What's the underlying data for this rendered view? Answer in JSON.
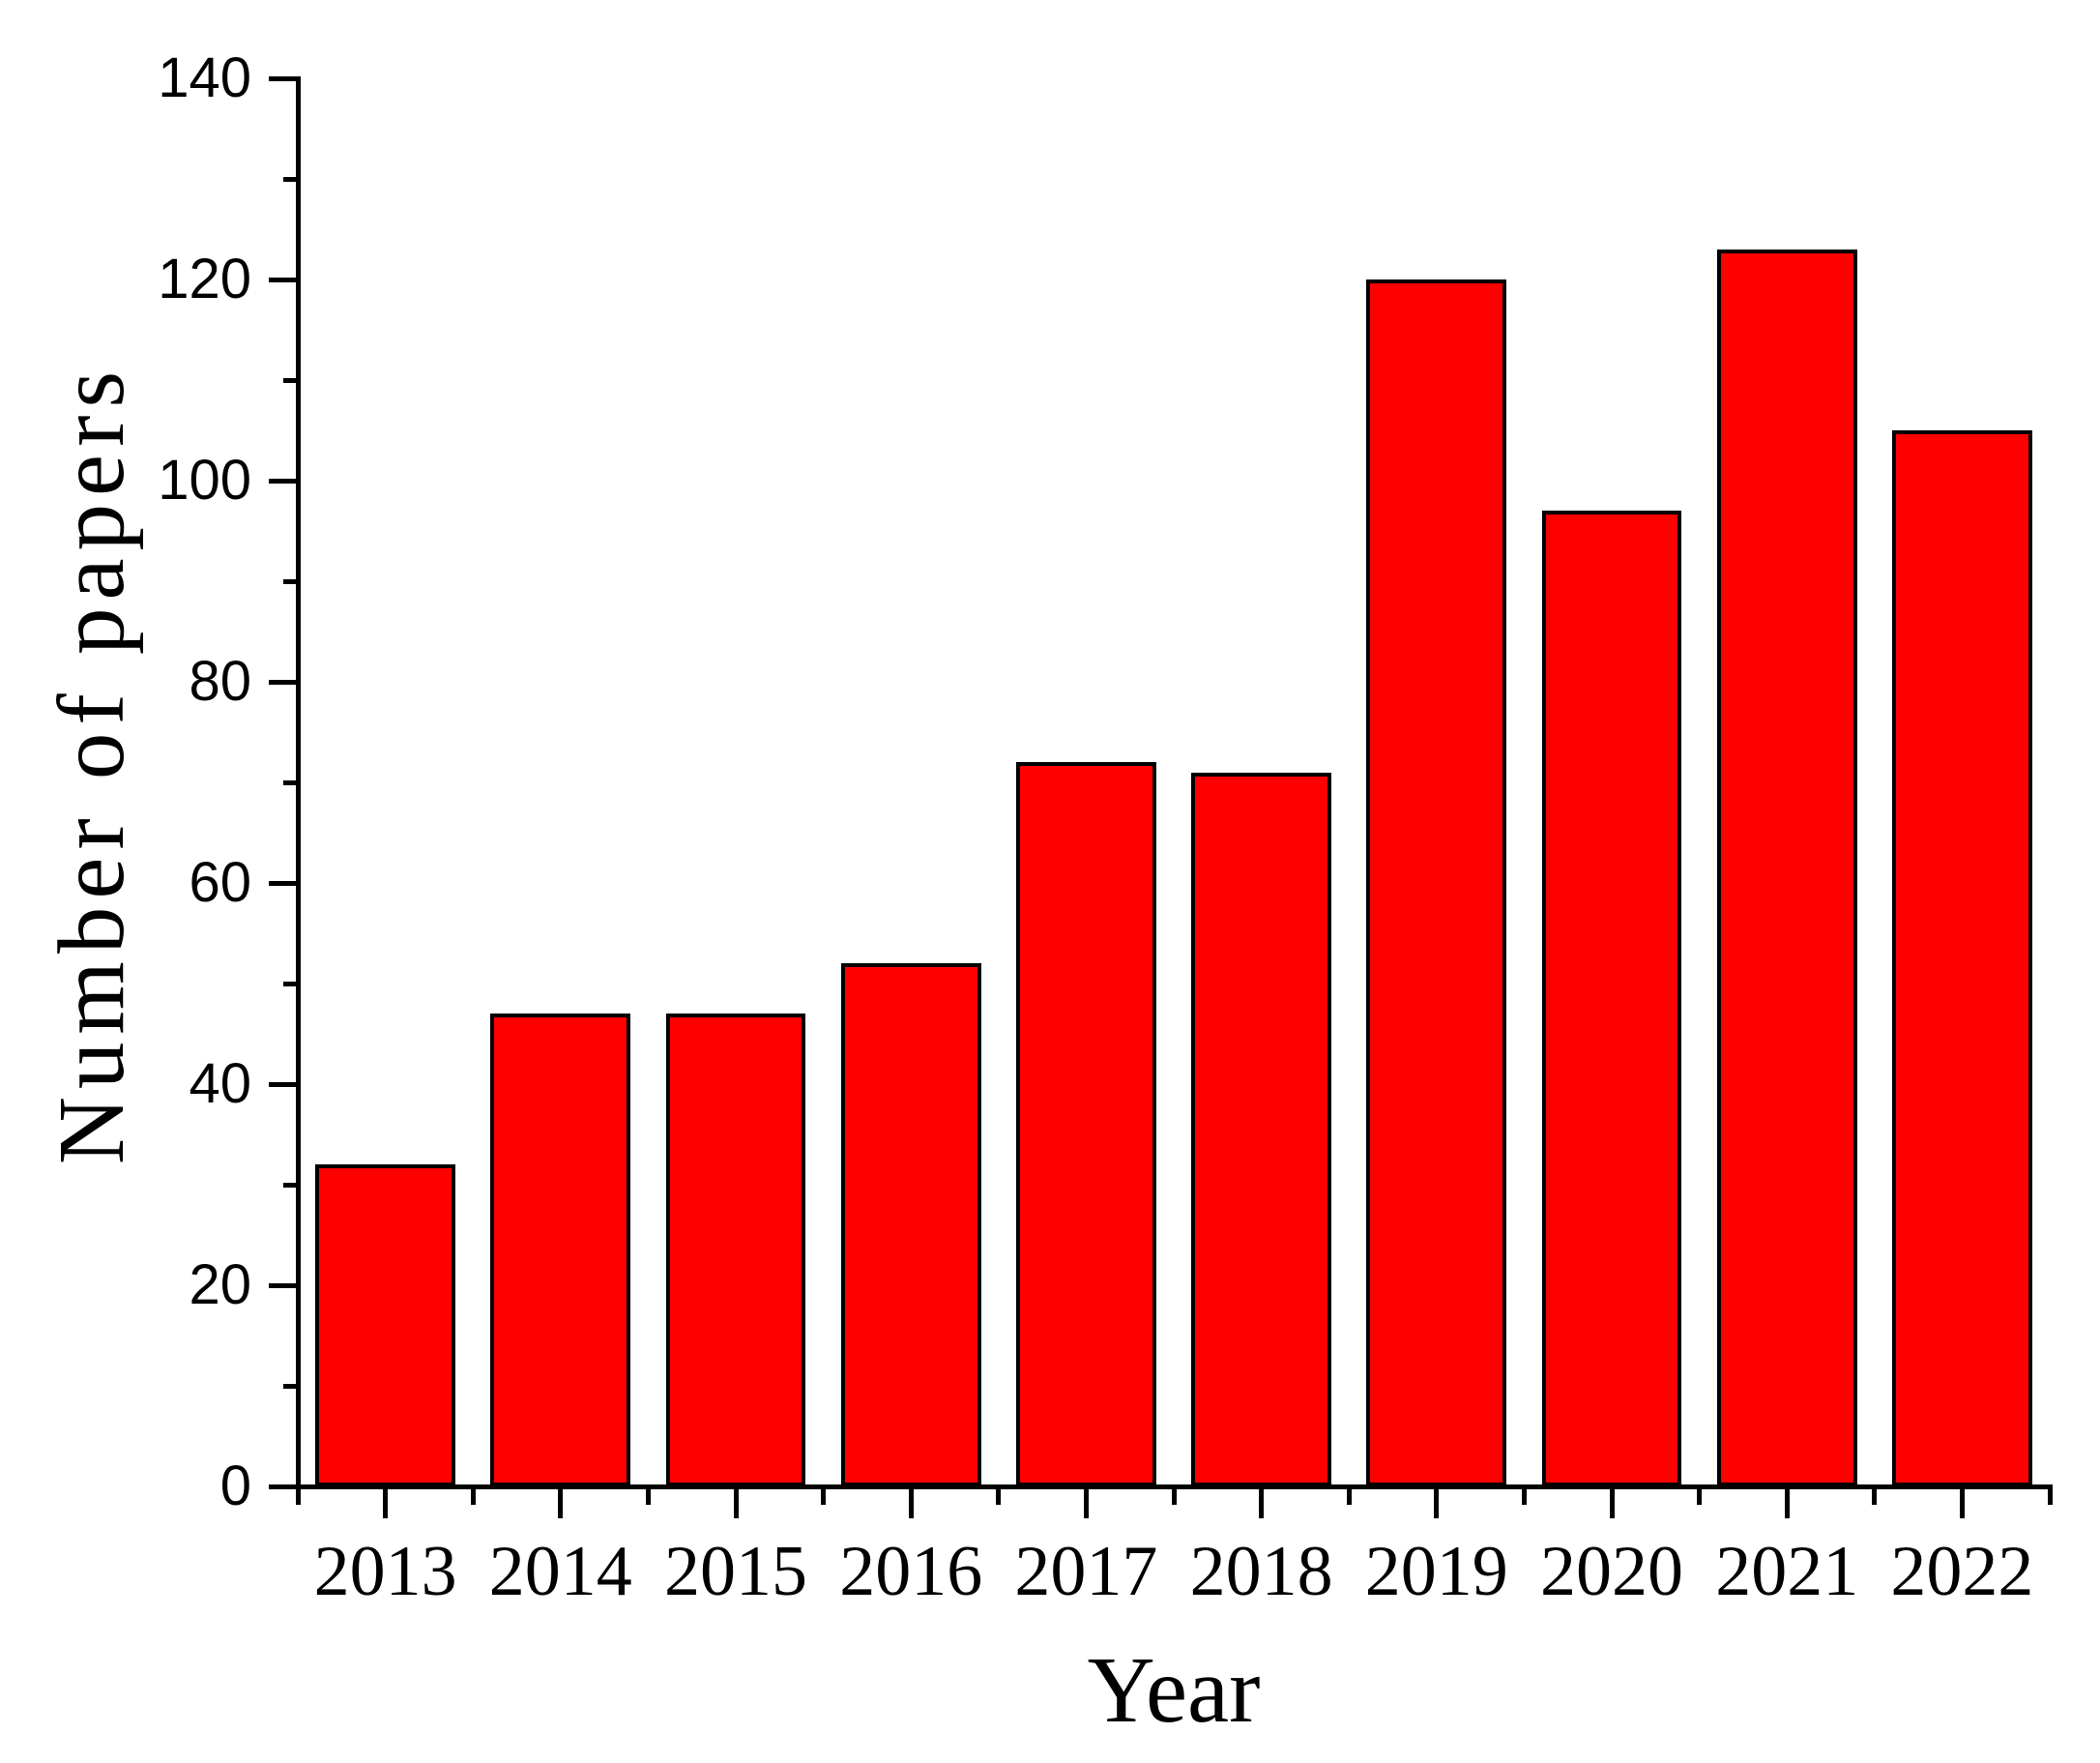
{
  "figure": {
    "background_color": "#FFFFFF",
    "text_color": "#000000"
  },
  "chart_data": {
    "type": "bar",
    "categories": [
      "2013",
      "2014",
      "2015",
      "2016",
      "2017",
      "2018",
      "2019",
      "2020",
      "2021",
      "2022"
    ],
    "values": [
      32,
      47,
      47,
      52,
      72,
      71,
      120,
      97,
      123,
      105
    ],
    "title": "",
    "xlabel": "Year",
    "ylabel": "Number of papers",
    "ylim": [
      0,
      140
    ],
    "y_major_step": 20,
    "y_minor_step": 10,
    "y_tick_labels": [
      "0",
      "20",
      "40",
      "60",
      "80",
      "100",
      "120",
      "140"
    ],
    "grid": false,
    "legend": null,
    "bar_color": "#FF0000",
    "bar_border_color": "#000000",
    "axis_color": "#000000"
  }
}
